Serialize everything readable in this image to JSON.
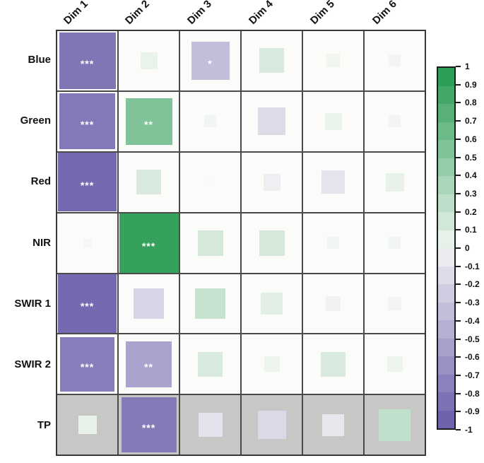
{
  "figure": {
    "background": "#ffffff",
    "grid_line_color": "#4a4a4a",
    "grid_outer_border": "#383838",
    "cell_background": "#fbfbf9",
    "gray_row_background": "#c7c7c5"
  },
  "chart_data": {
    "type": "heatmap",
    "subtype": "correlation-square-plot",
    "title": "",
    "x_labels": [
      "Dim 1",
      "Dim 2",
      "Dim 3",
      "Dim 4",
      "Dim 5",
      "Dim 6"
    ],
    "y_labels": [
      "Blue",
      "Green",
      "Red",
      "NIR",
      "SWIR 1",
      "SWIR 2",
      "TP"
    ],
    "series": [
      {
        "name": "Blue",
        "values": [
          -0.88,
          0.08,
          -0.4,
          0.17,
          0.05,
          -0.04
        ]
      },
      {
        "name": "Green",
        "values": [
          -0.86,
          0.6,
          0.04,
          -0.21,
          0.08,
          -0.04
        ]
      },
      {
        "name": "Red",
        "values": [
          -0.96,
          0.17,
          -0.01,
          -0.08,
          -0.15,
          0.09
        ]
      },
      {
        "name": "NIR",
        "values": [
          -0.02,
          0.97,
          0.18,
          0.18,
          0.04,
          0.04
        ]
      },
      {
        "name": "SWIR 1",
        "values": [
          -0.96,
          -0.25,
          0.25,
          0.13,
          -0.06,
          -0.05
        ]
      },
      {
        "name": "SWIR 2",
        "values": [
          -0.83,
          -0.58,
          0.17,
          0.07,
          0.17,
          0.07
        ]
      },
      {
        "name": "TP",
        "values": [
          0.09,
          -0.85,
          -0.16,
          -0.22,
          -0.13,
          0.28
        ]
      }
    ],
    "significance": [
      [
        "***",
        "",
        "*",
        "",
        "",
        ""
      ],
      [
        "***",
        "**",
        "",
        "",
        "",
        ""
      ],
      [
        "***",
        "",
        "",
        "",
        "",
        ""
      ],
      [
        "",
        "***",
        "",
        "",
        "",
        ""
      ],
      [
        "***",
        "",
        "",
        "",
        "",
        ""
      ],
      [
        "***",
        "**",
        "",
        "",
        "",
        ""
      ],
      [
        "",
        "***",
        "",
        "",
        "",
        ""
      ]
    ],
    "gray_background_rows": [
      "TP"
    ],
    "size_encoding": "square side proportional to sqrt(|r|)",
    "value_range": [
      -1,
      1
    ],
    "palette": {
      "positive_end": "#2f9e58",
      "zero": "#fafaf8",
      "negative_end": "#6e64ad"
    },
    "legend": {
      "position": "right",
      "orientation": "vertical",
      "tick_labels": [
        "1",
        "0.9",
        "0.8",
        "0.7",
        "0.6",
        "0.5",
        "0.4",
        "0.3",
        "0.2",
        "0.1",
        "0",
        "-0.1",
        "-0.2",
        "-0.3",
        "-0.4",
        "-0.5",
        "-0.6",
        "-0.7",
        "-0.8",
        "-0.9",
        "-1"
      ],
      "bands": 20
    }
  }
}
